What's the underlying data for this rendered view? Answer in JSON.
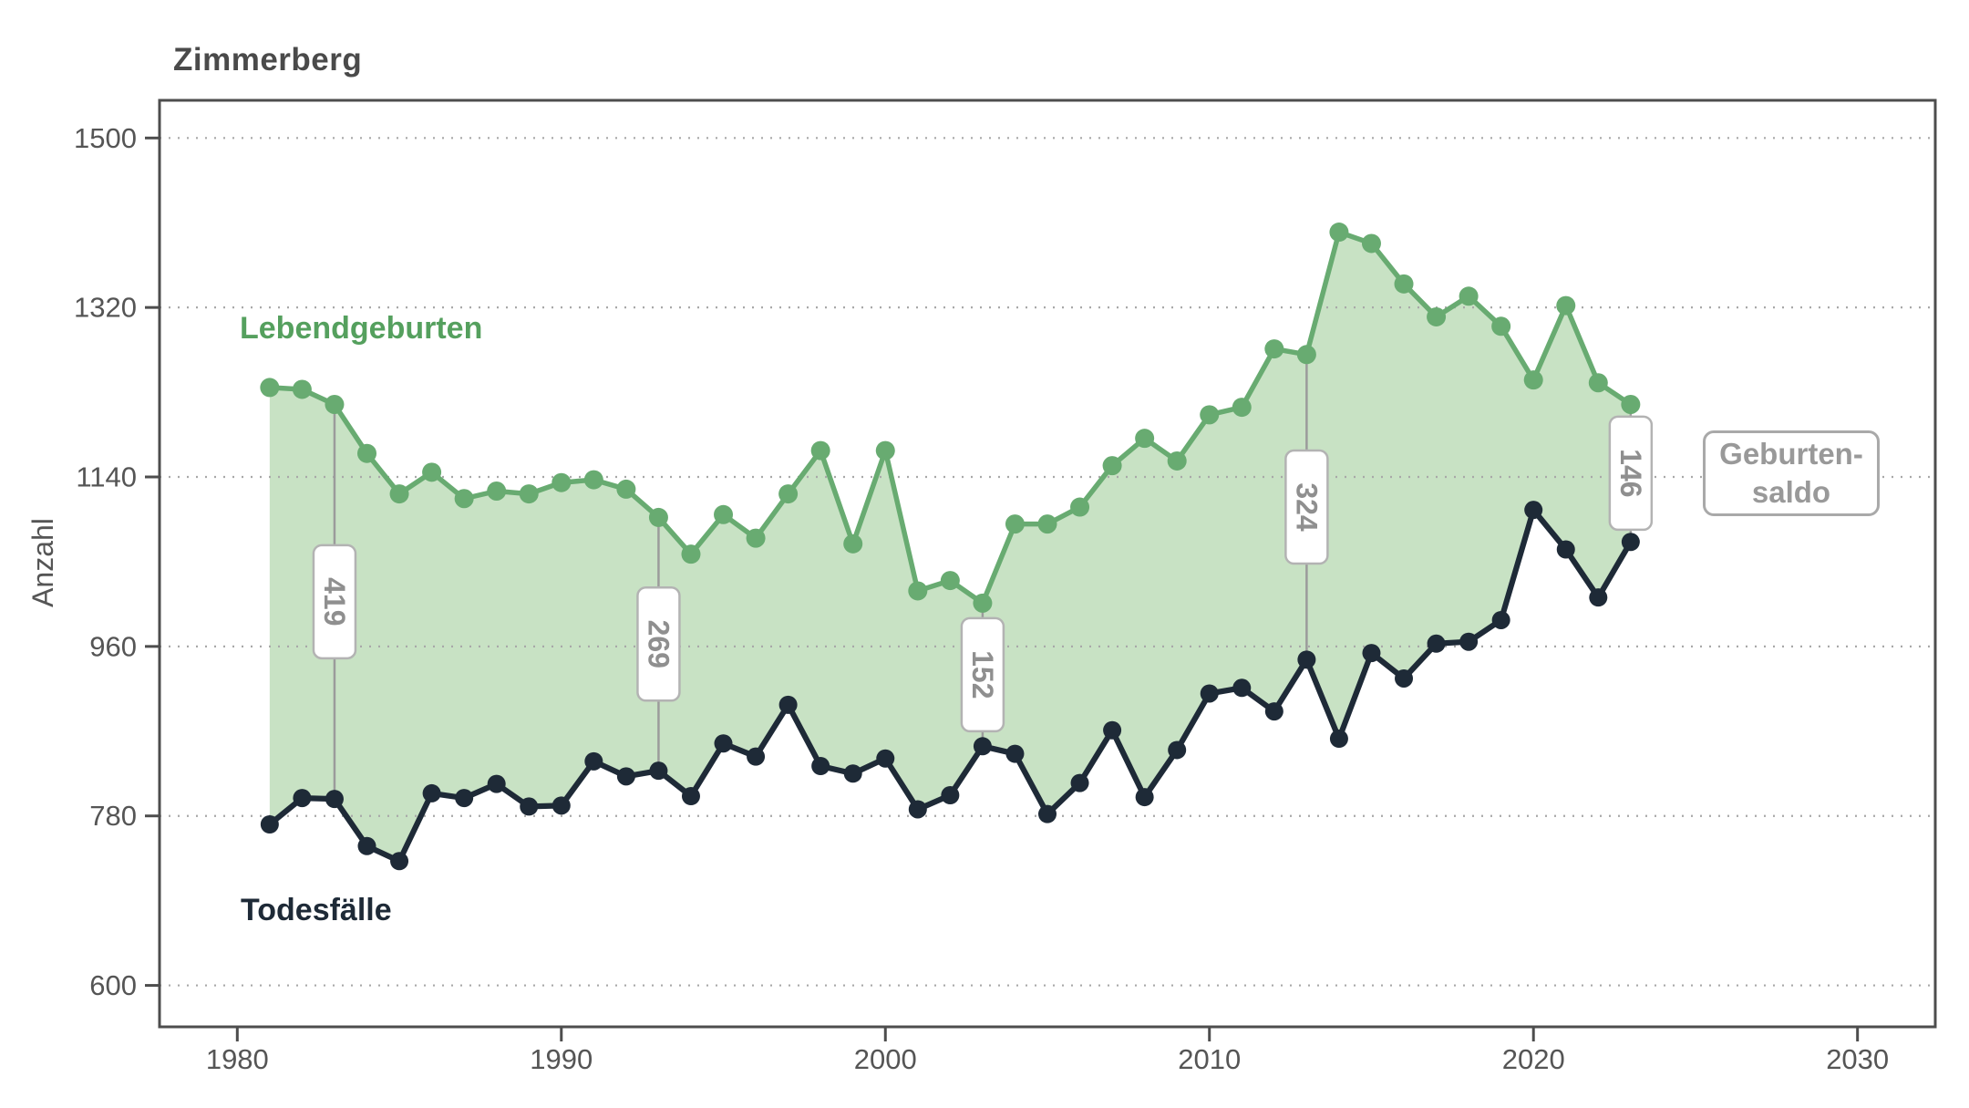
{
  "title": "Zimmerberg",
  "labels": {
    "births_series": "Lebendgeburten",
    "deaths_series": "Todesfälle",
    "saldo_line1": "Geburten-",
    "saldo_line2": "saldo"
  },
  "colors": {
    "births_line": "#68ab71",
    "births_text": "#55a05e",
    "deaths_line": "#1e2a37",
    "area_fill": "#c8e2c4",
    "grid": "#a8a8a8",
    "axis": "#4d4d4d",
    "tick_text": "#555555",
    "annotation_text": "#8f8f8f",
    "annotation_border": "#b3b3b3",
    "title_text": "#4a4a4a"
  },
  "chart_data": {
    "type": "line",
    "title": "Zimmerberg",
    "xlabel": "",
    "ylabel": "Anzahl",
    "legend_position": "inline-labels",
    "grid": "horizontal-dotted",
    "x_ticks": [
      1980,
      1990,
      2000,
      2010,
      2020,
      2030
    ],
    "y_ticks": [
      600,
      780,
      960,
      1140,
      1320,
      1500
    ],
    "x_domain": [
      1977.6,
      2032.4
    ],
    "y_domain": [
      556,
      1540
    ],
    "years": [
      1981,
      1982,
      1983,
      1984,
      1985,
      1986,
      1987,
      1988,
      1989,
      1990,
      1991,
      1992,
      1993,
      1994,
      1995,
      1996,
      1997,
      1998,
      1999,
      2000,
      2001,
      2002,
      2003,
      2004,
      2005,
      2006,
      2007,
      2008,
      2009,
      2010,
      2011,
      2012,
      2013,
      2014,
      2015,
      2016,
      2017,
      2018,
      2019,
      2020,
      2021,
      2022,
      2023
    ],
    "series": [
      {
        "name": "Lebendgeburten",
        "color": "#68ab71",
        "values": [
          1235,
          1233,
          1217,
          1165,
          1122,
          1145,
          1117,
          1125,
          1122,
          1134,
          1137,
          1127,
          1097,
          1058,
          1100,
          1075,
          1122,
          1168,
          1069,
          1168,
          1019,
          1030,
          1006,
          1090,
          1090,
          1108,
          1152,
          1181,
          1157,
          1206,
          1214,
          1276,
          1270,
          1400,
          1388,
          1345,
          1310,
          1332,
          1300,
          1243,
          1322,
          1240,
          1217
        ]
      },
      {
        "name": "Todesfälle",
        "color": "#1e2a37",
        "values": [
          771,
          799,
          798,
          748,
          732,
          804,
          799,
          814,
          790,
          791,
          838,
          822,
          828,
          801,
          857,
          843,
          898,
          833,
          825,
          841,
          787,
          802,
          854,
          846,
          782,
          815,
          871,
          800,
          850,
          910,
          916,
          891,
          946,
          862,
          953,
          926,
          963,
          965,
          988,
          1105,
          1063,
          1012,
          1071
        ]
      }
    ],
    "area_between_series": true,
    "area_fill": "#c8e2c4",
    "area_label": "Geburten-saldo",
    "annotations": [
      {
        "year": 1983,
        "label": "419"
      },
      {
        "year": 1993,
        "label": "269"
      },
      {
        "year": 2003,
        "label": "152"
      },
      {
        "year": 2013,
        "label": "324"
      },
      {
        "year": 2023,
        "label": "146"
      }
    ]
  }
}
